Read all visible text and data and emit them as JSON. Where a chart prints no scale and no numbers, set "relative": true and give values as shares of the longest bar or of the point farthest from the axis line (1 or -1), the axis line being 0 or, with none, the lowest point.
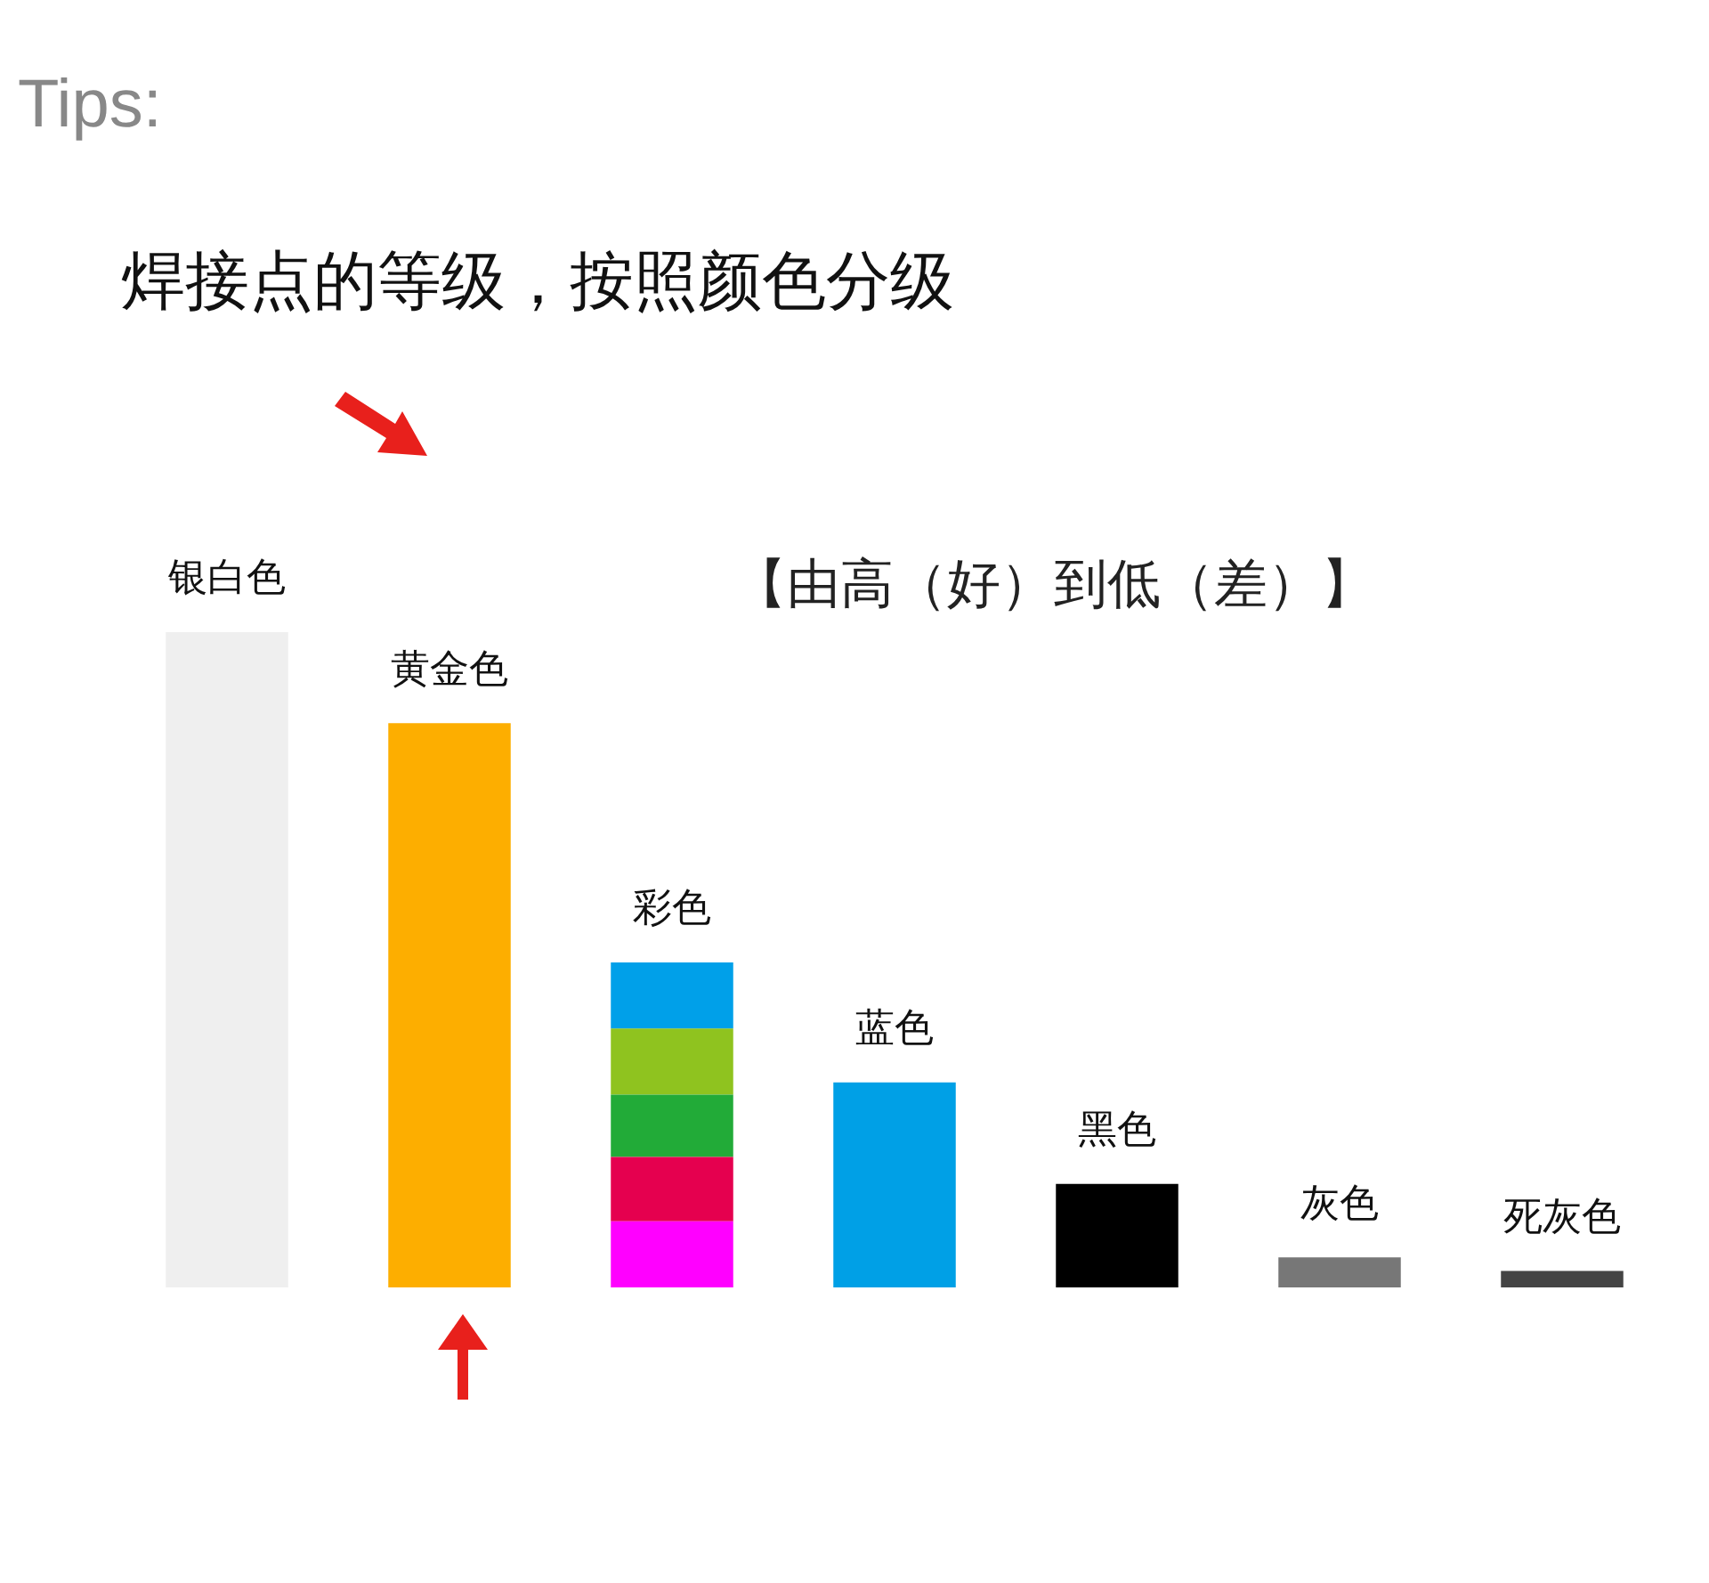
{
  "chart_data": {
    "type": "bar",
    "title": "Tips:",
    "subtitle": "焊接点的等级，按照颜色分级",
    "annotations": [
      "【由高（好）到低（差）】"
    ],
    "categories": [
      "银白色",
      "黄金色",
      "彩色",
      "蓝色",
      "黑色",
      "灰色",
      "死灰色"
    ],
    "relative": true,
    "stacked": true,
    "legend": false,
    "series": [
      {
        "colors": [
          "#efefef",
          "#fdae00",
          null,
          "#00a0e6",
          "#000000",
          "#777777",
          "#444444"
        ],
        "values": [
          1,
          0.861,
          null,
          0.313,
          0.158,
          0.046,
          0.025
        ]
      },
      {
        "color": "#ff00ff",
        "values": [
          null,
          null,
          0.101,
          null,
          null,
          null,
          null
        ]
      },
      {
        "color": "#e5004f",
        "values": [
          null,
          null,
          0.098,
          null,
          null,
          null,
          null
        ]
      },
      {
        "color": "#22ab38",
        "values": [
          null,
          null,
          0.095,
          null,
          null,
          null,
          null
        ]
      },
      {
        "color": "#8fc31f",
        "values": [
          null,
          null,
          0.101,
          null,
          null,
          null,
          null
        ]
      },
      {
        "color": "#00a0e9",
        "values": [
          null,
          null,
          0.101,
          null,
          null,
          null,
          null
        ]
      }
    ]
  }
}
